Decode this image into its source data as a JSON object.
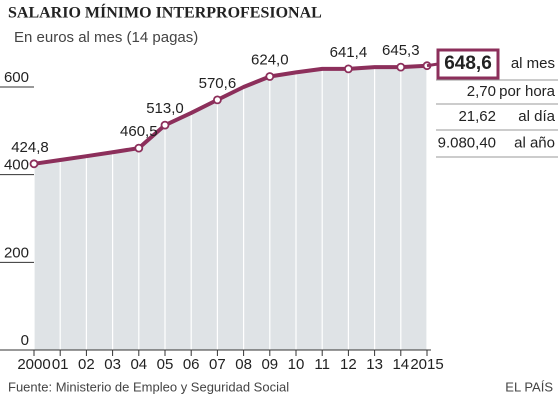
{
  "chart_data": {
    "type": "area",
    "title": "SALARIO MÍNIMO INTERPROFESIONAL",
    "subtitle": "En euros al mes (14 pagas)",
    "source": "Fuente: Ministerio de Empleo y Seguridad Social",
    "credit": "EL PAÍS",
    "x": [
      2000,
      2001,
      2002,
      2003,
      2004,
      2005,
      2006,
      2007,
      2008,
      2009,
      2010,
      2011,
      2012,
      2013,
      2014,
      2015
    ],
    "series": [
      {
        "name": "Salario mínimo",
        "color": "#8c2f5b",
        "values": [
          424.8,
          433.5,
          442.2,
          451.2,
          460.5,
          513.0,
          540.9,
          570.6,
          600.0,
          624.0,
          633.3,
          641.4,
          641.4,
          645.3,
          645.3,
          648.6
        ],
        "value_labels": [
          "424,8",
          null,
          null,
          null,
          "460,5",
          "513,0",
          null,
          "570,6",
          null,
          "624,0",
          null,
          null,
          "641,4",
          null,
          "645,3",
          null
        ]
      }
    ],
    "area_color": "#dfe3e6",
    "xlim": [
      2000,
      2015
    ],
    "xticks": [
      2000,
      {
        "value": 2001,
        "label": "01"
      },
      {
        "value": 2002,
        "label": "02"
      },
      {
        "value": 2003,
        "label": "03"
      },
      {
        "value": 2004,
        "label": "04"
      },
      {
        "value": 2005,
        "label": "05"
      },
      {
        "value": 2006,
        "label": "06"
      },
      {
        "value": 2007,
        "label": "07"
      },
      {
        "value": 2008,
        "label": "08"
      },
      {
        "value": 2009,
        "label": "09"
      },
      {
        "value": 2010,
        "label": "10"
      },
      {
        "value": 2011,
        "label": "11"
      },
      {
        "value": 2012,
        "label": "12"
      },
      {
        "value": 2013,
        "label": "13"
      },
      {
        "value": 2014,
        "label": "14"
      },
      2015
    ],
    "ylim": [
      0,
      660
    ],
    "yticks": [
      0,
      200,
      400,
      600
    ],
    "summary": [
      {
        "value": 648.6,
        "value_label": "648,6",
        "label": "al mes"
      },
      {
        "value": 2.7,
        "value_label": "2,70",
        "label": "por hora"
      },
      {
        "value": 21.62,
        "value_label": "21,62",
        "label": "al día"
      },
      {
        "value": 9080.4,
        "value_label": "9.080,40",
        "label": "al año"
      }
    ]
  }
}
